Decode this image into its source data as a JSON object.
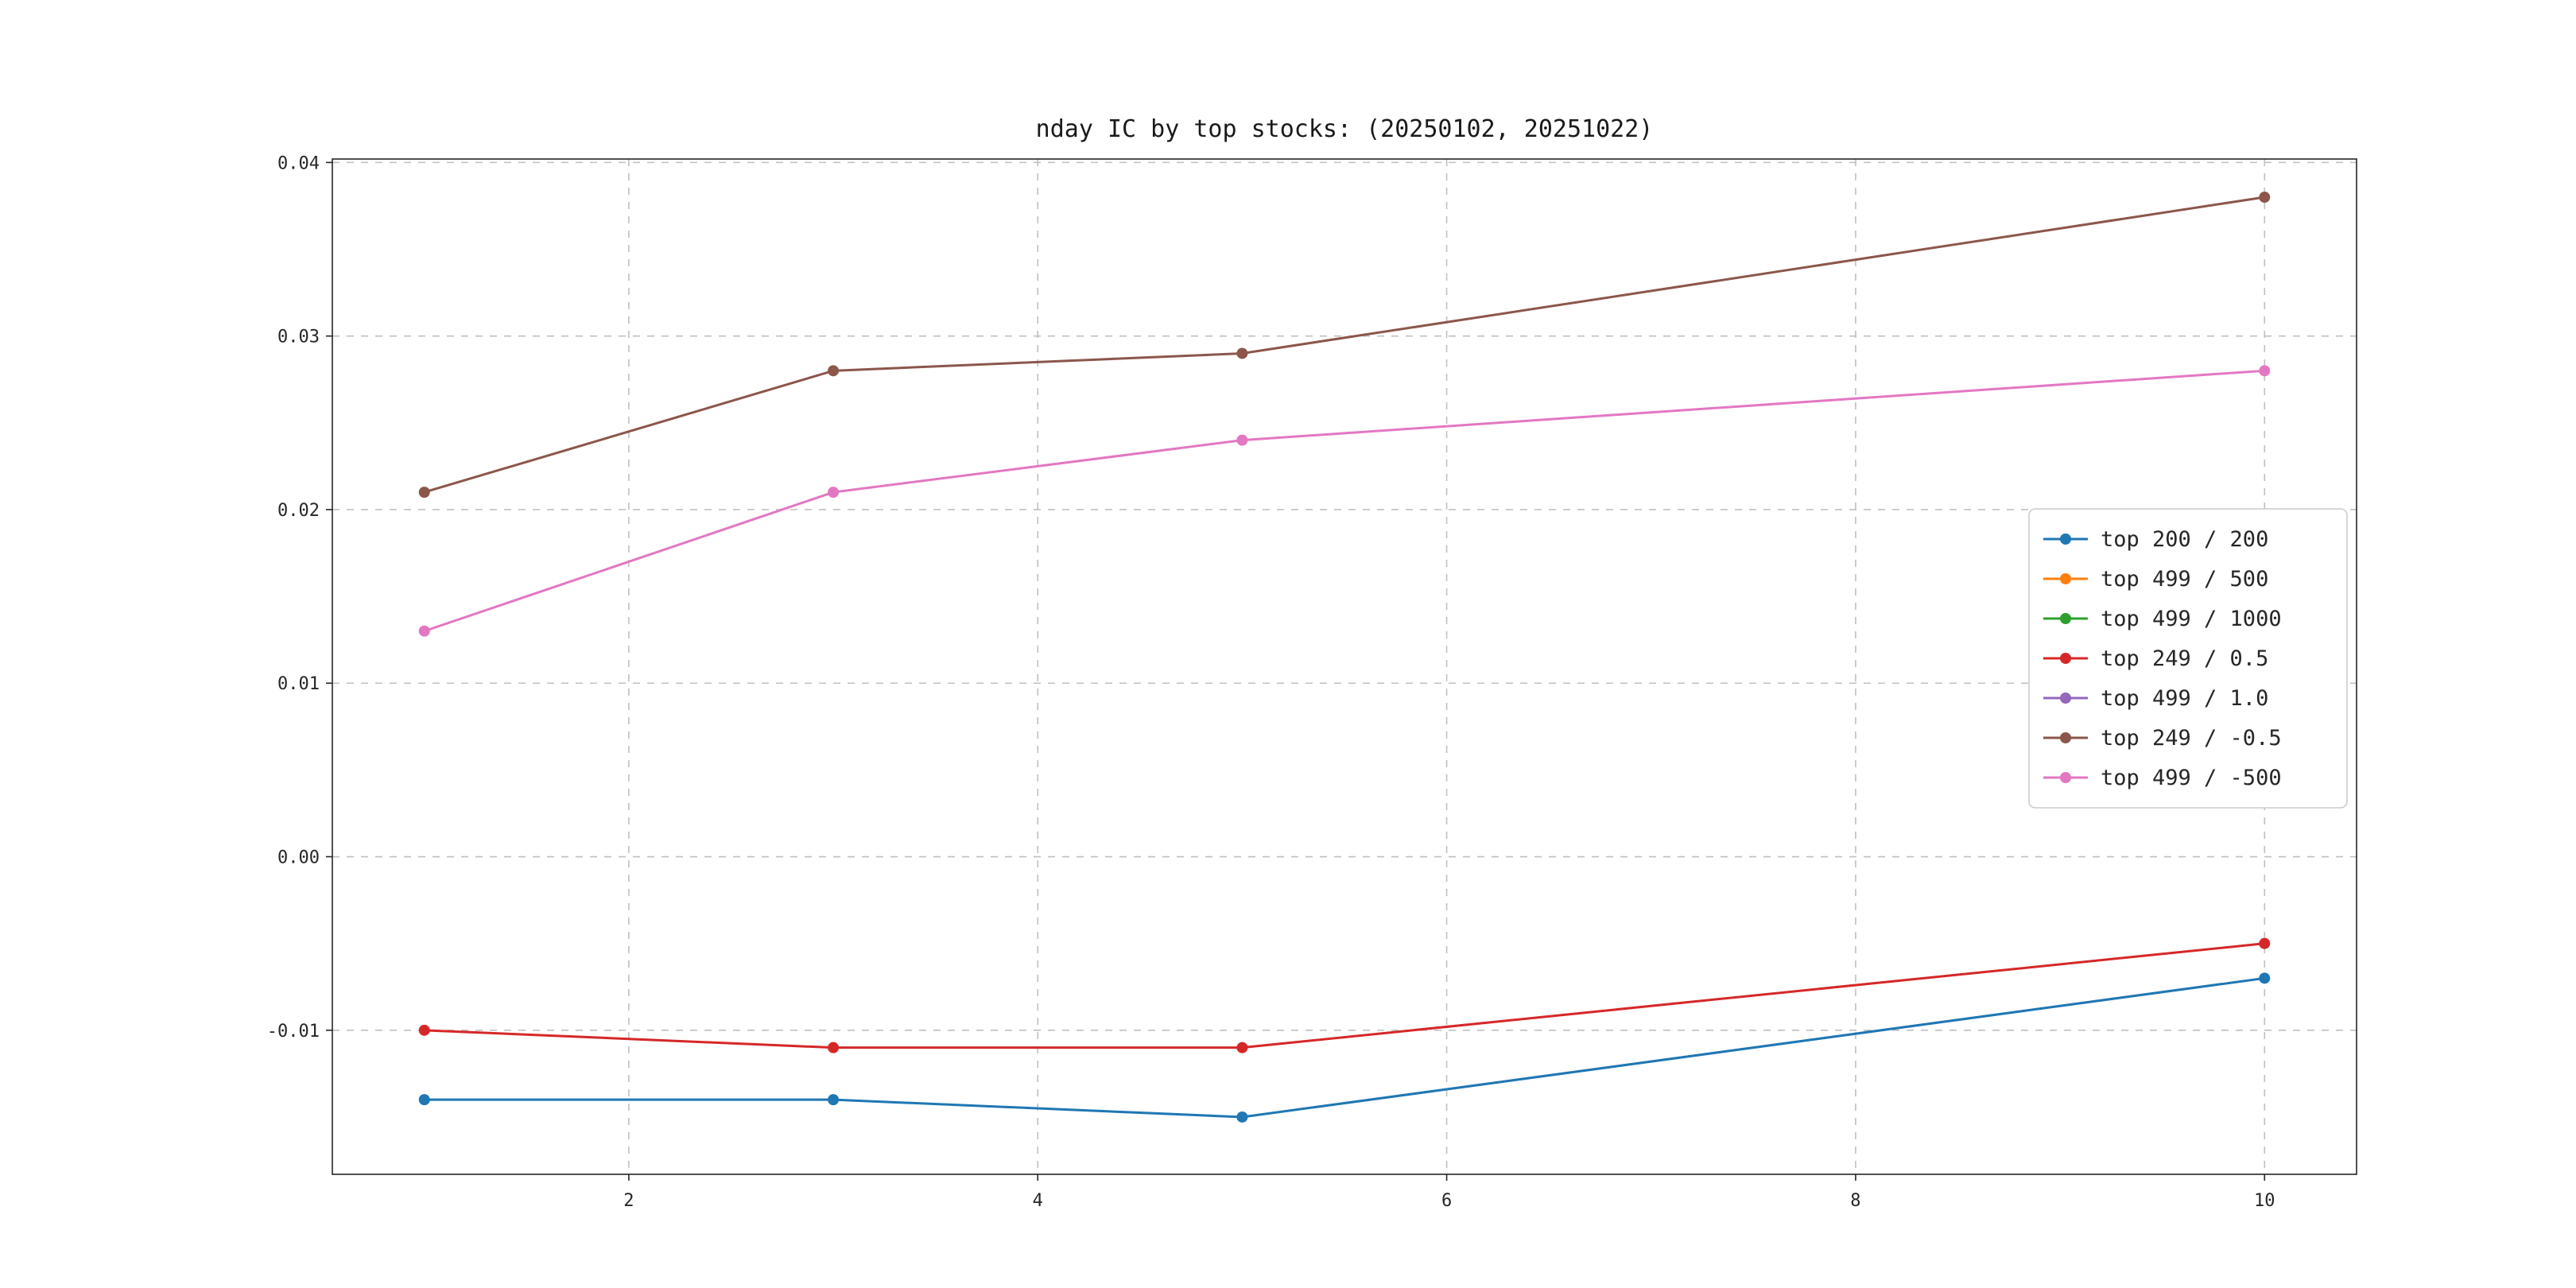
{
  "chart_data": {
    "type": "line",
    "title": "nday IC by top stocks: (20250102, 20251022)",
    "xlabel": "",
    "ylabel": "",
    "xlim": [
      0.55,
      10.45
    ],
    "ylim": [
      -0.0183,
      0.0402
    ],
    "xticks": [
      2,
      4,
      6,
      8,
      10
    ],
    "xtick_labels": [
      "2",
      "4",
      "6",
      "8",
      "10"
    ],
    "yticks": [
      -0.01,
      0.0,
      0.01,
      0.02,
      0.03,
      0.04
    ],
    "ytick_labels": [
      "-0.01",
      "0.00",
      "0.01",
      "0.02",
      "0.03",
      "0.04"
    ],
    "grid": true,
    "grid_style": "dashed",
    "legend_position": "center right",
    "x": [
      1,
      3,
      5,
      10
    ],
    "series": [
      {
        "name": "top 200 / 200",
        "color": "#1f77b4",
        "visible_in_plot": true,
        "y": [
          -0.014,
          -0.014,
          -0.015,
          -0.007
        ]
      },
      {
        "name": "top 499 / 500",
        "color": "#ff7f0e",
        "visible_in_plot": false,
        "y": []
      },
      {
        "name": "top 499 / 1000",
        "color": "#2ca02c",
        "visible_in_plot": false,
        "y": []
      },
      {
        "name": "top 249 / 0.5",
        "color": "#d62728",
        "visible_in_plot": true,
        "y": [
          -0.01,
          -0.011,
          -0.011,
          -0.005
        ]
      },
      {
        "name": "top 499 / 1.0",
        "color": "#9467bd",
        "visible_in_plot": false,
        "y": []
      },
      {
        "name": "top 249 / -0.5",
        "color": "#8c564b",
        "visible_in_plot": true,
        "y": [
          0.021,
          0.028,
          0.029,
          0.038
        ]
      },
      {
        "name": "top 499 / -500",
        "color": "#e377c2",
        "visible_in_plot": true,
        "y": [
          0.013,
          0.021,
          0.024,
          0.028
        ]
      }
    ],
    "marker": "circle"
  }
}
